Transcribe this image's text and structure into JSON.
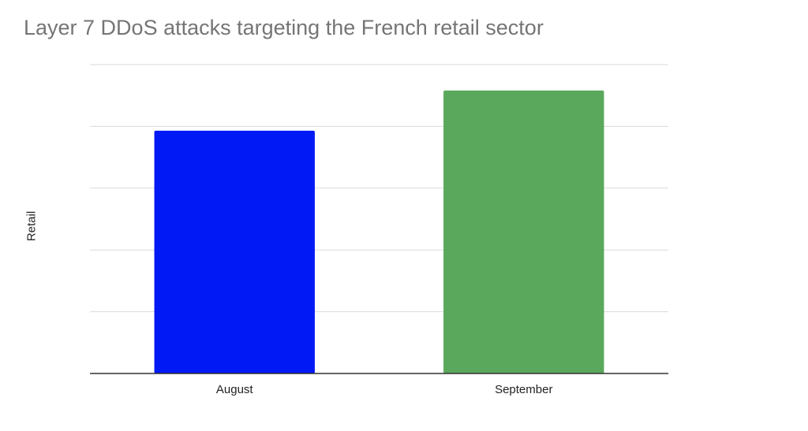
{
  "chart_data": {
    "type": "bar",
    "title": "Layer 7 DDoS attacks targeting the French retail sector",
    "xlabel": "",
    "ylabel": "Retail",
    "categories": [
      "August",
      "September"
    ],
    "values": [
      3.93,
      4.58
    ],
    "colors": [
      "#0019f5",
      "#5aa85c"
    ],
    "ylim": [
      0,
      5
    ],
    "gridlines": true,
    "y_tick_labels_shown": false,
    "legend": "none"
  }
}
